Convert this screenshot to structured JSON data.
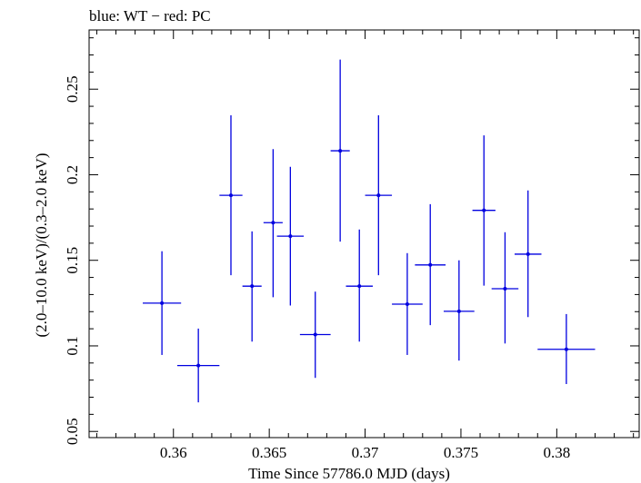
{
  "chart_data": {
    "type": "scatter",
    "title": "blue: WT − red: PC",
    "xlabel": "Time Since 57786.0 MJD (days)",
    "ylabel": "(2.0–10.0 keV)/(0.3–2.0 keV)",
    "xlim": [
      0.3556,
      0.3843
    ],
    "ylim": [
      0.0464,
      0.2846
    ],
    "x_ticks": [
      {
        "value": 0.36,
        "label": "0.36"
      },
      {
        "value": 0.365,
        "label": "0.365"
      },
      {
        "value": 0.37,
        "label": "0.37"
      },
      {
        "value": 0.375,
        "label": "0.375"
      },
      {
        "value": 0.38,
        "label": "0.38"
      }
    ],
    "y_ticks": [
      {
        "value": 0.05,
        "label": "0.05"
      },
      {
        "value": 0.1,
        "label": "0.1"
      },
      {
        "value": 0.15,
        "label": "0.15"
      },
      {
        "value": 0.2,
        "label": "0.2"
      },
      {
        "value": 0.25,
        "label": "0.25"
      }
    ],
    "grid": false,
    "series": [
      {
        "color": "#0000e0",
        "points": [
          {
            "x": 0.3594,
            "xerr": 0.001,
            "y": 0.125,
            "ylo": 0.0947,
            "yhi": 0.1553
          },
          {
            "x": 0.3613,
            "xerr": 0.0011,
            "y": 0.0885,
            "ylo": 0.067,
            "yhi": 0.1101
          },
          {
            "x": 0.363,
            "xerr": 0.0006,
            "y": 0.188,
            "ylo": 0.1413,
            "yhi": 0.2347
          },
          {
            "x": 0.3641,
            "xerr": 0.0005,
            "y": 0.1349,
            "ylo": 0.1025,
            "yhi": 0.1669
          },
          {
            "x": 0.3652,
            "xerr": 0.0005,
            "y": 0.172,
            "ylo": 0.1284,
            "yhi": 0.215
          },
          {
            "x": 0.3661,
            "xerr": 0.0007,
            "y": 0.1641,
            "ylo": 0.1236,
            "yhi": 0.2046
          },
          {
            "x": 0.3674,
            "xerr": 0.0008,
            "y": 0.1066,
            "ylo": 0.0813,
            "yhi": 0.1317
          },
          {
            "x": 0.3687,
            "xerr": 0.0005,
            "y": 0.214,
            "ylo": 0.1609,
            "yhi": 0.2673
          },
          {
            "x": 0.3697,
            "xerr": 0.0007,
            "y": 0.1349,
            "ylo": 0.1025,
            "yhi": 0.168
          },
          {
            "x": 0.3707,
            "xerr": 0.0007,
            "y": 0.188,
            "ylo": 0.1413,
            "yhi": 0.2347
          },
          {
            "x": 0.3722,
            "xerr": 0.0008,
            "y": 0.1244,
            "ylo": 0.0947,
            "yhi": 0.1542
          },
          {
            "x": 0.3734,
            "xerr": 0.0008,
            "y": 0.1473,
            "ylo": 0.1121,
            "yhi": 0.1828
          },
          {
            "x": 0.3749,
            "xerr": 0.0008,
            "y": 0.1202,
            "ylo": 0.0914,
            "yhi": 0.15
          },
          {
            "x": 0.3762,
            "xerr": 0.0006,
            "y": 0.1792,
            "ylo": 0.1352,
            "yhi": 0.223
          },
          {
            "x": 0.3773,
            "xerr": 0.0007,
            "y": 0.1334,
            "ylo": 0.1014,
            "yhi": 0.1664
          },
          {
            "x": 0.3785,
            "xerr": 0.0007,
            "y": 0.1536,
            "ylo": 0.1168,
            "yhi": 0.1908
          },
          {
            "x": 0.3805,
            "xerr": 0.0015,
            "y": 0.098,
            "ylo": 0.0777,
            "yhi": 0.1186
          }
        ]
      }
    ]
  }
}
